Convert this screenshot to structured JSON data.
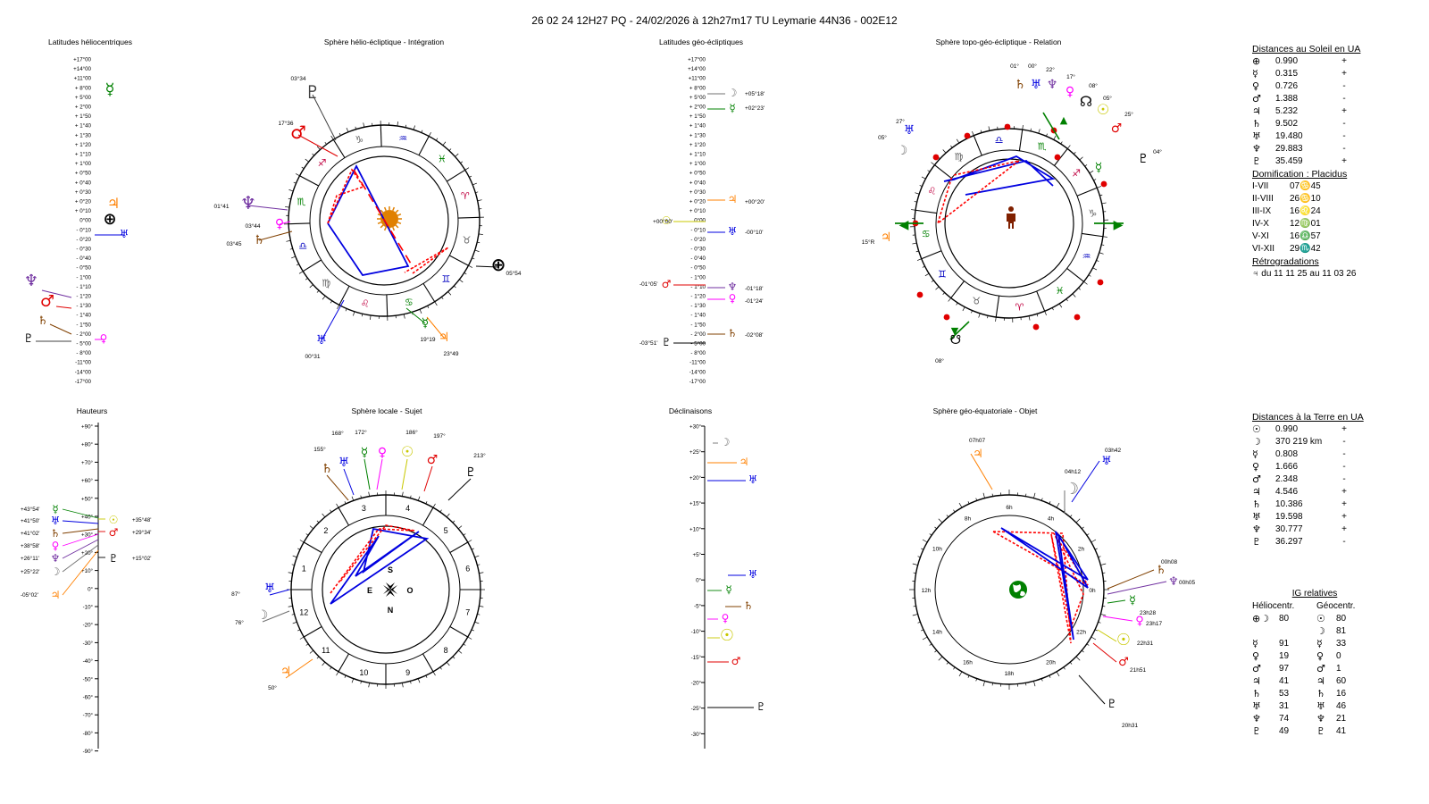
{
  "header": {
    "text": "26 02 24 12H27 PQ   -  24/02/2026 à 12h27m17 TU  Leymarie  44N36 - 002E12"
  },
  "panels": {
    "p1": "Latitudes héliocentriques",
    "p2": "Sphère hélio-écliptique - Intégration",
    "p3": "Latitudes géo-écliptiques",
    "p4": "Sphère topo-géo-écliptique - Relation",
    "p5": "Hauteurs",
    "p6": "Sphère locale - Sujet",
    "p7": "Déclinaisons",
    "p8": "Sphère géo-équatoriale - Objet"
  },
  "scales": {
    "helio_lat": [
      "+17°00",
      "+14°00",
      "+11°00",
      "+ 8°00",
      "+ 5°00",
      "+ 2°00",
      "+ 1°50",
      "+ 1°40",
      "+ 1°30",
      "+ 1°20",
      "+ 1°10",
      "+ 1°00",
      "+ 0°50",
      "+ 0°40",
      "+ 0°30",
      "+ 0°20",
      "+ 0°10",
      "0°00",
      "- 0°10",
      "- 0°20",
      "- 0°30",
      "- 0°40",
      "- 0°50",
      "- 1°00",
      "- 1°10",
      "- 1°20",
      "- 1°30",
      "- 1°40",
      "- 1°50",
      "- 2°00",
      "- 5°00",
      "- 8°00",
      "-11°00",
      "-14°00",
      "-17°00"
    ],
    "geo_lat": [
      "+17°00",
      "+14°00",
      "+11°00",
      "+ 8°00",
      "+ 5°00",
      "+ 2°00",
      "+ 1°50",
      "+ 1°40",
      "+ 1°30",
      "+ 1°20",
      "+ 1°10",
      "+ 1°00",
      "+ 0°50",
      "+ 0°40",
      "+ 0°30",
      "+ 0°20",
      "+ 0°10",
      "0°00",
      "- 0°10",
      "- 0°20",
      "- 0°30",
      "- 0°40",
      "- 0°50",
      "- 1°00",
      "- 1°10",
      "- 1°20",
      "- 1°30",
      "- 1°40",
      "- 1°50",
      "- 2°00",
      "- 5°00",
      "- 8°00",
      "-11°00",
      "-14°00",
      "-17°00"
    ],
    "heights": [
      "+90°",
      "+80°",
      "+70°",
      "+60°",
      "+50°",
      "+40°",
      "+30°",
      "+20°",
      "+10°",
      "0°",
      "-10°",
      "-20°",
      "-30°",
      "-40°",
      "-50°",
      "-60°",
      "-70°",
      "-80°",
      "-90°"
    ],
    "decl": [
      "+30°",
      "+25°",
      "+20°",
      "+15°",
      "+10°",
      "+5°",
      "0°",
      "-5°",
      "-10°",
      "-15°",
      "-20°",
      "-25°",
      "-30°"
    ]
  },
  "helio_labels": [
    "03°34",
    "17°36",
    "01°41",
    "03°44",
    "03°45",
    "05°54",
    "19°19",
    "23°49",
    "00°31"
  ],
  "geo_lat_labels": [
    "+05°18'",
    "+02°23'",
    "+00°20'",
    "+00°00'",
    "-00°10'",
    "-01°05'",
    "-01°18'",
    "-01°24'",
    "-02°08'",
    "-03°51'"
  ],
  "topo_labels": [
    "01°",
    "00°",
    "22°",
    "17°",
    "08°",
    "05°",
    "25°",
    "27°",
    "05°",
    "04°",
    "15°R",
    "08°"
  ],
  "height_labels": [
    "+43°54'",
    "+41°50'",
    "+41°02'",
    "+38°58'",
    "+26°11'",
    "+25°22'",
    "-05°02'",
    "+35°48'",
    "+29°34'",
    "+15°02'"
  ],
  "local_labels": [
    "155°",
    "168°",
    "172°",
    "186°",
    "197°",
    "213°",
    "87°",
    "76°",
    "50°"
  ],
  "local_cardinals": {
    "s": "S",
    "e": "E",
    "o": "O",
    "n": "N"
  },
  "equ_labels": [
    "07h07",
    "03h42",
    "04h12",
    "00h08",
    "00h05",
    "23h28",
    "23h17",
    "22h31",
    "21h51",
    "20h31"
  ],
  "zodiac": {
    "helio": [
      "♑",
      "♐",
      "♏",
      "♎",
      "♍",
      "♌",
      "♋",
      "♊",
      "♉",
      "♈",
      "♓",
      "♒"
    ],
    "topo": [
      "♑",
      "♐",
      "♏",
      "♎",
      "♍",
      "♌",
      "♋",
      "♊",
      "♉",
      "♈",
      "♓",
      "♒"
    ]
  },
  "houses": [
    "1",
    "2",
    "3",
    "4",
    "5",
    "6",
    "7",
    "8",
    "9",
    "10",
    "11",
    "12"
  ],
  "equ_hours": [
    "0h",
    "2h",
    "4h",
    "6h",
    "8h",
    "10h",
    "12h",
    "14h",
    "16h",
    "18h",
    "20h",
    "22h"
  ],
  "sun_dist": {
    "title": "Distances au Soleil en UA",
    "rows": [
      {
        "g": "⊕",
        "v": "0.990",
        "s": "+"
      },
      {
        "g": "☿",
        "v": "0.315",
        "s": "+"
      },
      {
        "g": "♀",
        "v": "0.726",
        "s": "-"
      },
      {
        "g": "♂",
        "v": "1.388",
        "s": "-"
      },
      {
        "g": "♃",
        "v": "5.232",
        "s": "+"
      },
      {
        "g": "♄",
        "v": "9.502",
        "s": "-"
      },
      {
        "g": "♅",
        "v": "19.480",
        "s": "-"
      },
      {
        "g": "♆",
        "v": "29.883",
        "s": "-"
      },
      {
        "g": "♇",
        "v": "35.459",
        "s": "+"
      }
    ],
    "dom_title": "Domification : Placidus",
    "dom": [
      {
        "k": "I-VII",
        "v": "07♋45"
      },
      {
        "k": "II-VIII",
        "v": "26♋10"
      },
      {
        "k": "III-IX",
        "v": "16♌24"
      },
      {
        "k": "IV-X",
        "v": "12♍01"
      },
      {
        "k": "V-XI",
        "v": "16♎57"
      },
      {
        "k": "VI-XII",
        "v": "29♏42"
      }
    ],
    "retro_title": "Rétrogradations",
    "retro": "♃  du 11 11 25 au 11 03 26"
  },
  "earth_dist": {
    "title": "Distances à la Terre en UA",
    "rows": [
      {
        "g": "☉",
        "v": "0.990",
        "s": "+"
      },
      {
        "g": "☽",
        "v": "370 219 km",
        "s": "-"
      },
      {
        "g": "☿",
        "v": "0.808",
        "s": "-"
      },
      {
        "g": "♀",
        "v": "1.666",
        "s": "-"
      },
      {
        "g": "♂",
        "v": "2.348",
        "s": "-"
      },
      {
        "g": "♃",
        "v": "4.546",
        "s": "+"
      },
      {
        "g": "♄",
        "v": "10.386",
        "s": "+"
      },
      {
        "g": "♅",
        "v": "19.598",
        "s": "+"
      },
      {
        "g": "♆",
        "v": "30.777",
        "s": "+"
      },
      {
        "g": "♇",
        "v": "36.297",
        "s": "-"
      }
    ]
  },
  "ig": {
    "title": "IG relatives",
    "col1": "Héliocentr.",
    "col2": "Géocentr.",
    "rows": [
      {
        "g1": "⊕☽",
        "v1": "80",
        "g2": "☉",
        "v2": "80"
      },
      {
        "g1": "",
        "v1": "",
        "g2": "☽",
        "v2": "81"
      },
      {
        "g1": "☿",
        "v1": "91",
        "g2": "☿",
        "v2": "33"
      },
      {
        "g1": "♀",
        "v1": "19",
        "g2": "♀",
        "v2": "0"
      },
      {
        "g1": "♂",
        "v1": "97",
        "g2": "♂",
        "v2": "1"
      },
      {
        "g1": "♃",
        "v1": "41",
        "g2": "♃",
        "v2": "60"
      },
      {
        "g1": "♄",
        "v1": "53",
        "g2": "♄",
        "v2": "16"
      },
      {
        "g1": "♅",
        "v1": "31",
        "g2": "♅",
        "v2": "46"
      },
      {
        "g1": "♆",
        "v1": "74",
        "g2": "♆",
        "v2": "21"
      },
      {
        "g1": "♇",
        "v1": "49",
        "g2": "♇",
        "v2": "41"
      }
    ]
  },
  "colors": {
    "sun": "#c8c800",
    "moon": "#707070",
    "mercury": "#008000",
    "venus": "#ff00ff",
    "mars": "#e00000",
    "jupiter": "#ff8000",
    "saturn": "#804000",
    "uranus": "#0000e0",
    "neptune": "#7030a0",
    "pluto": "#404040",
    "aspect": "#0000e0",
    "aspect_hard": "#ff0000",
    "node": "#008000"
  }
}
